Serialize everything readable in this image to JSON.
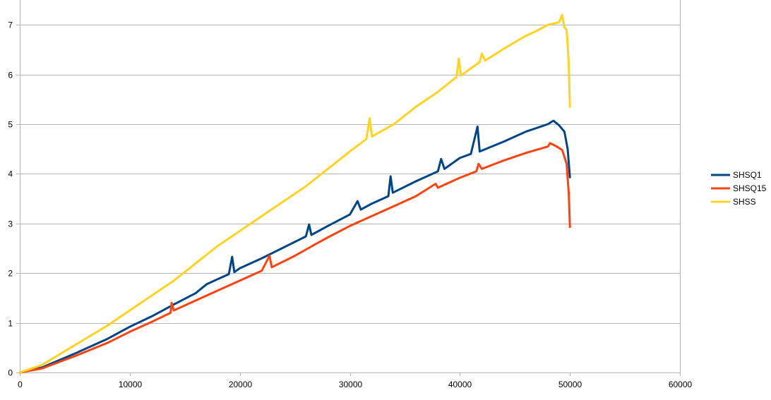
{
  "chart_data": {
    "type": "line",
    "title": "",
    "xlabel": "",
    "ylabel": "",
    "xlim": [
      0,
      60000
    ],
    "ylim": [
      0,
      7.5
    ],
    "x_ticks": [
      0,
      10000,
      20000,
      30000,
      40000,
      50000,
      60000
    ],
    "y_ticks": [
      0,
      1,
      2,
      3,
      4,
      5,
      6,
      7
    ],
    "grid": "horizontal",
    "legend_position": "right",
    "series": [
      {
        "name": "SHSQ1",
        "color": "#004586",
        "points": [
          [
            0,
            0
          ],
          [
            2000,
            0.1
          ],
          [
            5000,
            0.38
          ],
          [
            8000,
            0.68
          ],
          [
            10000,
            0.92
          ],
          [
            12000,
            1.13
          ],
          [
            14000,
            1.37
          ],
          [
            16000,
            1.6
          ],
          [
            17000,
            1.78
          ],
          [
            18000,
            1.88
          ],
          [
            19000,
            1.98
          ],
          [
            19300,
            2.33
          ],
          [
            19500,
            2.02
          ],
          [
            20000,
            2.1
          ],
          [
            22000,
            2.3
          ],
          [
            24000,
            2.52
          ],
          [
            26000,
            2.74
          ],
          [
            26300,
            2.98
          ],
          [
            26500,
            2.77
          ],
          [
            28000,
            2.95
          ],
          [
            30000,
            3.18
          ],
          [
            30700,
            3.45
          ],
          [
            31000,
            3.28
          ],
          [
            32000,
            3.4
          ],
          [
            33500,
            3.55
          ],
          [
            33700,
            3.95
          ],
          [
            33900,
            3.62
          ],
          [
            36000,
            3.85
          ],
          [
            38000,
            4.05
          ],
          [
            38300,
            4.3
          ],
          [
            38600,
            4.1
          ],
          [
            40000,
            4.32
          ],
          [
            41000,
            4.4
          ],
          [
            41600,
            4.95
          ],
          [
            41800,
            4.45
          ],
          [
            44000,
            4.65
          ],
          [
            46000,
            4.85
          ],
          [
            48000,
            5.0
          ],
          [
            48500,
            5.07
          ],
          [
            49000,
            4.98
          ],
          [
            49500,
            4.85
          ],
          [
            49800,
            4.5
          ],
          [
            50000,
            3.93
          ]
        ]
      },
      {
        "name": "SHSQ15",
        "color": "#ff420e",
        "points": [
          [
            0,
            0
          ],
          [
            2000,
            0.08
          ],
          [
            5000,
            0.33
          ],
          [
            8000,
            0.6
          ],
          [
            10000,
            0.82
          ],
          [
            12000,
            1.02
          ],
          [
            13700,
            1.2
          ],
          [
            13800,
            1.4
          ],
          [
            14000,
            1.25
          ],
          [
            16000,
            1.45
          ],
          [
            18000,
            1.65
          ],
          [
            20000,
            1.85
          ],
          [
            22000,
            2.05
          ],
          [
            22700,
            2.35
          ],
          [
            22900,
            2.12
          ],
          [
            25000,
            2.35
          ],
          [
            27000,
            2.6
          ],
          [
            28000,
            2.72
          ],
          [
            30000,
            2.95
          ],
          [
            32000,
            3.15
          ],
          [
            34000,
            3.35
          ],
          [
            36000,
            3.55
          ],
          [
            37800,
            3.8
          ],
          [
            38000,
            3.72
          ],
          [
            40000,
            3.92
          ],
          [
            41500,
            4.05
          ],
          [
            41700,
            4.2
          ],
          [
            42000,
            4.1
          ],
          [
            44000,
            4.27
          ],
          [
            46000,
            4.42
          ],
          [
            48000,
            4.55
          ],
          [
            48200,
            4.62
          ],
          [
            48800,
            4.55
          ],
          [
            49300,
            4.48
          ],
          [
            49700,
            4.2
          ],
          [
            49900,
            3.6
          ],
          [
            50000,
            2.93
          ]
        ]
      },
      {
        "name": "SHSS",
        "color": "#ffd320",
        "points": [
          [
            0,
            0
          ],
          [
            2000,
            0.15
          ],
          [
            5000,
            0.55
          ],
          [
            8000,
            0.95
          ],
          [
            10000,
            1.25
          ],
          [
            12000,
            1.55
          ],
          [
            14000,
            1.85
          ],
          [
            16000,
            2.2
          ],
          [
            18000,
            2.55
          ],
          [
            20000,
            2.85
          ],
          [
            22000,
            3.15
          ],
          [
            24000,
            3.45
          ],
          [
            26000,
            3.75
          ],
          [
            28000,
            4.1
          ],
          [
            30000,
            4.45
          ],
          [
            31500,
            4.7
          ],
          [
            31800,
            5.12
          ],
          [
            32000,
            4.75
          ],
          [
            34000,
            5.0
          ],
          [
            36000,
            5.35
          ],
          [
            38000,
            5.65
          ],
          [
            39700,
            5.95
          ],
          [
            39900,
            6.32
          ],
          [
            40100,
            5.98
          ],
          [
            41800,
            6.25
          ],
          [
            42000,
            6.42
          ],
          [
            42300,
            6.28
          ],
          [
            44000,
            6.52
          ],
          [
            46000,
            6.78
          ],
          [
            47000,
            6.88
          ],
          [
            48000,
            7.0
          ],
          [
            49000,
            7.05
          ],
          [
            49300,
            7.2
          ],
          [
            49500,
            6.95
          ],
          [
            49700,
            6.9
          ],
          [
            49800,
            6.6
          ],
          [
            49900,
            6.2
          ],
          [
            50000,
            5.35
          ]
        ]
      }
    ]
  },
  "x_tick_labels": [
    "0",
    "10000",
    "20000",
    "30000",
    "40000",
    "50000",
    "60000"
  ],
  "y_tick_labels": [
    "0",
    "1",
    "2",
    "3",
    "4",
    "5",
    "6",
    "7"
  ],
  "legend": [
    {
      "label": "SHSQ1",
      "color": "#004586"
    },
    {
      "label": "SHSQ15",
      "color": "#ff420e"
    },
    {
      "label": "SHSS",
      "color": "#ffd320"
    }
  ]
}
